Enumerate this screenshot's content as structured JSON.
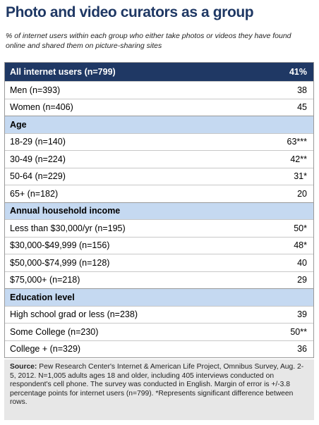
{
  "header": {
    "title": "Photo and video curators as a group",
    "subtitle": "% of internet users within each group who either take photos or videos they have found online and shared them on picture-sharing sites"
  },
  "table": {
    "header": [
      "All internet users (n=799)",
      "41%"
    ],
    "rows": [
      [
        "Men (n=393)",
        "38"
      ],
      [
        "Women (n=406)",
        "45"
      ],
      [
        "Age"
      ],
      [
        "18-29 (n=140)",
        "63***"
      ],
      [
        "30-49 (n=224)",
        "42**"
      ],
      [
        "50-64 (n=229)",
        "31*"
      ],
      [
        "65+ (n=182)",
        "20"
      ],
      [
        "Annual household income"
      ],
      [
        "Less than $30,000/yr (n=195)",
        "50*"
      ],
      [
        "$30,000-$49,999 (n=156)",
        "48*"
      ],
      [
        "$50,000-$74,999 (n=128)",
        "40"
      ],
      [
        "$75,000+ (n=218)",
        "29"
      ],
      [
        "Education level"
      ],
      [
        "High school grad or less (n=238)",
        "39"
      ],
      [
        "Some College (n=230)",
        "50**"
      ],
      [
        "College + (n=329)",
        "36"
      ]
    ]
  },
  "note": {
    "label": "Source:",
    "text": "Pew Research Center's Internet & American Life Project, Omnibus Survey, Aug. 2-5, 2012. N=1,005 adults ages 18 and older, including 405 interviews conducted on respondent's cell phone. The survey was conducted in English. Margin of error is +/-3.8 percentage points for internet users (n=799). *Represents significant difference between rows."
  }
}
